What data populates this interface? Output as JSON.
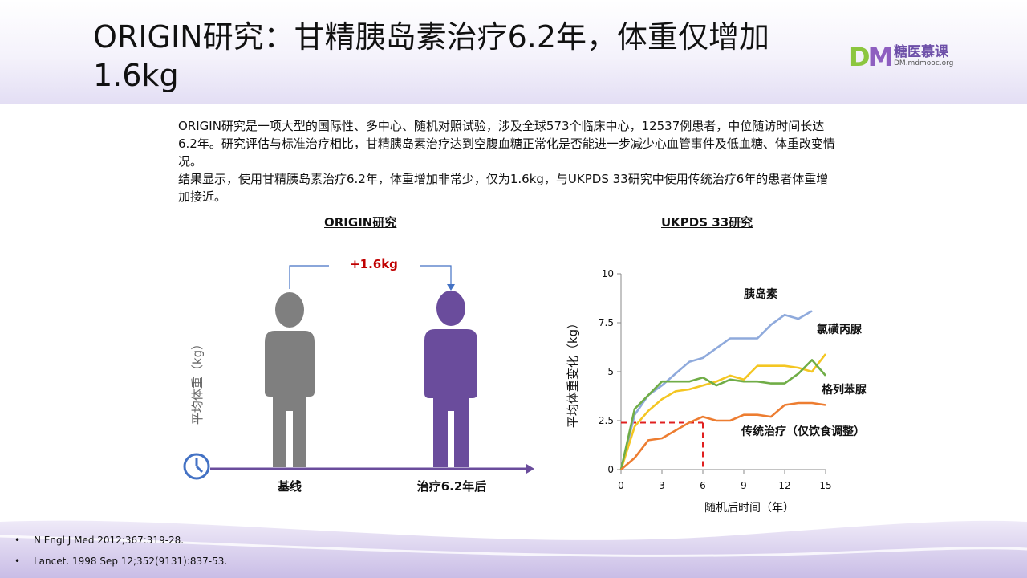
{
  "title": "ORIGIN研究：甘精胰岛素治疗6.2年，体重仅增加1.6kg",
  "logo": {
    "mark_d": "D",
    "mark_m": "M",
    "name": "糖医慕课",
    "url": "DM.mdmooc.org"
  },
  "description": [
    "ORIGIN研究是一项大型的国际性、多中心、随机对照试验，涉及全球573个临床中心，12537例患者，中位随访时间长达6.2年。研究评估与标准治疗相比，甘精胰岛素治疗达到空腹血糖正常化是否能进一步减少心血管事件及低血糖、体重改变情况。",
    "结果显示，使用甘精胰岛素治疗6.2年，体重增加非常少，仅为1.6kg，与UKPDS 33研究中使用传统治疗6年的患者体重增加接近。"
  ],
  "origin_panel": {
    "title": "ORIGIN研究",
    "ylabel": "平均体重（kg）",
    "gain_label": "+1.6kg",
    "baseline_label": "基线",
    "after_label": "治疗6.2年后",
    "colors": {
      "baseline": "#7f7f7f",
      "after": "#6a4c9c",
      "axis": "#6a4c9c",
      "gain": "#c00000"
    }
  },
  "chart_data": {
    "type": "line",
    "title": "UKPDS 33研究",
    "xlabel": "随机后时间（年）",
    "ylabel": "平均体重变化（kg）",
    "xlim": [
      0,
      15
    ],
    "ylim": [
      0,
      10
    ],
    "x_ticks": [
      "0",
      "3",
      "6",
      "9",
      "12",
      "15"
    ],
    "y_ticks": [
      "0",
      "2.5",
      "5",
      "7.5",
      "10"
    ],
    "series": [
      {
        "name": "胰岛素",
        "color": "#8faadc",
        "x": [
          0,
          1,
          2,
          3,
          4,
          5,
          6,
          7,
          8,
          9,
          10,
          11,
          12,
          13,
          14
        ],
        "y": [
          0,
          2.8,
          3.8,
          4.3,
          4.9,
          5.5,
          5.7,
          6.2,
          6.7,
          6.7,
          6.7,
          7.4,
          7.9,
          7.7,
          8.1
        ]
      },
      {
        "name": "氯磺丙脲",
        "color": "#f4c622",
        "x": [
          0,
          1,
          2,
          3,
          4,
          5,
          6,
          7,
          8,
          9,
          10,
          11,
          12,
          13,
          14,
          15
        ],
        "y": [
          0,
          2.2,
          3.0,
          3.6,
          4.0,
          4.1,
          4.3,
          4.5,
          4.8,
          4.6,
          5.3,
          5.3,
          5.3,
          5.2,
          5.0,
          5.9
        ]
      },
      {
        "name": "格列苯脲",
        "color": "#70ad47",
        "x": [
          0,
          1,
          2,
          3,
          4,
          5,
          6,
          7,
          8,
          9,
          10,
          11,
          12,
          13,
          14,
          15
        ],
        "y": [
          0,
          3.1,
          3.8,
          4.5,
          4.5,
          4.5,
          4.7,
          4.3,
          4.6,
          4.5,
          4.5,
          4.4,
          4.4,
          4.9,
          5.6,
          4.8
        ]
      },
      {
        "name": "传统治疗（仅饮食调整）",
        "color": "#ed7d31",
        "x": [
          0,
          1,
          2,
          3,
          4,
          5,
          6,
          7,
          8,
          9,
          10,
          11,
          12,
          13,
          14,
          15
        ],
        "y": [
          0,
          0.6,
          1.5,
          1.6,
          2.0,
          2.4,
          2.7,
          2.5,
          2.5,
          2.8,
          2.8,
          2.7,
          3.3,
          3.4,
          3.4,
          3.3
        ]
      }
    ],
    "reference": {
      "x": 6,
      "y": 2.4,
      "color": "#e02020"
    }
  },
  "references": [
    "N Engl J Med 2012;367:319-28.",
    "Lancet. 1998 Sep 12;352(9131):837-53."
  ]
}
